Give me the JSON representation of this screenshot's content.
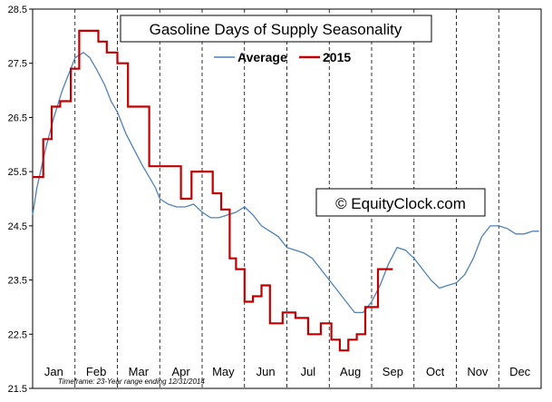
{
  "chart_data": {
    "type": "line",
    "title": "Gasoline Days of Supply Seasonality",
    "watermark": "© EquityClock.com",
    "footnote": "Timeframe: 23-Year range ending 12/31/2014",
    "xlabel": "",
    "ylabel": "",
    "x_range": [
      0,
      12
    ],
    "ylim": [
      21.5,
      28.5
    ],
    "y_ticks": [
      "28.5",
      "27.5",
      "26.5",
      "25.5",
      "24.5",
      "23.5",
      "22.5",
      "21.5"
    ],
    "x_categories": [
      "Jan",
      "Feb",
      "Mar",
      "Apr",
      "May",
      "Jun",
      "Jul",
      "Aug",
      "Sep",
      "Oct",
      "Nov",
      "Dec"
    ],
    "grid": "vertical dashed month separators",
    "legend_position": "top-center",
    "series": [
      {
        "name": "Average",
        "color": "#4f81bd",
        "style": "line",
        "x": [
          0.0,
          0.1,
          0.3,
          0.5,
          0.7,
          0.9,
          1.0,
          1.2,
          1.35,
          1.5,
          1.7,
          1.85,
          2.0,
          2.2,
          2.4,
          2.6,
          2.75,
          2.9,
          3.0,
          3.2,
          3.4,
          3.6,
          3.8,
          4.0,
          4.2,
          4.4,
          4.6,
          4.8,
          5.0,
          5.2,
          5.4,
          5.6,
          5.8,
          6.0,
          6.2,
          6.4,
          6.6,
          6.8,
          7.0,
          7.2,
          7.4,
          7.6,
          7.8,
          8.0,
          8.2,
          8.4,
          8.6,
          8.8,
          9.0,
          9.2,
          9.4,
          9.6,
          9.8,
          10.0,
          10.2,
          10.4,
          10.6,
          10.8,
          11.0,
          11.2,
          11.4,
          11.6,
          11.8,
          11.95
        ],
        "values": [
          24.7,
          25.2,
          25.9,
          26.5,
          27.0,
          27.4,
          27.6,
          27.7,
          27.6,
          27.4,
          27.1,
          26.8,
          26.6,
          26.2,
          25.9,
          25.6,
          25.4,
          25.2,
          25.0,
          24.9,
          24.85,
          24.85,
          24.9,
          24.75,
          24.65,
          24.65,
          24.7,
          24.75,
          24.85,
          24.7,
          24.5,
          24.4,
          24.3,
          24.1,
          24.05,
          24.0,
          23.9,
          23.7,
          23.5,
          23.3,
          23.1,
          22.9,
          22.9,
          23.1,
          23.4,
          23.8,
          24.1,
          24.05,
          23.9,
          23.7,
          23.5,
          23.35,
          23.4,
          23.45,
          23.6,
          23.9,
          24.3,
          24.5,
          24.5,
          24.45,
          24.35,
          24.35,
          24.4,
          24.4
        ]
      },
      {
        "name": "2015",
        "color": "#c00000",
        "style": "step",
        "x": [
          0.0,
          0.25,
          0.25,
          0.45,
          0.45,
          0.65,
          0.65,
          0.9,
          0.9,
          1.1,
          1.1,
          1.55,
          1.55,
          1.75,
          1.75,
          2.0,
          2.0,
          2.25,
          2.25,
          2.75,
          2.75,
          3.5,
          3.5,
          3.75,
          3.75,
          4.25,
          4.25,
          4.45,
          4.45,
          4.65,
          4.65,
          4.8,
          4.8,
          5.0,
          5.0,
          5.2,
          5.2,
          5.4,
          5.4,
          5.6,
          5.6,
          5.9,
          5.9,
          6.2,
          6.2,
          6.5,
          6.5,
          6.8,
          6.8,
          7.05,
          7.05,
          7.25,
          7.25,
          7.45,
          7.45,
          7.65,
          7.65,
          7.85,
          7.85,
          8.0,
          8.0,
          8.15,
          8.15,
          8.35,
          8.35,
          8.5
        ],
        "values": [
          25.4,
          25.4,
          26.1,
          26.1,
          26.7,
          26.7,
          26.8,
          26.8,
          27.4,
          27.4,
          28.1,
          28.1,
          27.9,
          27.9,
          27.7,
          27.7,
          27.5,
          27.5,
          26.7,
          26.7,
          25.6,
          25.6,
          25.0,
          25.0,
          25.5,
          25.5,
          25.1,
          25.1,
          24.8,
          24.8,
          23.9,
          23.9,
          23.7,
          23.7,
          23.1,
          23.1,
          23.2,
          23.2,
          23.4,
          23.4,
          22.7,
          22.7,
          22.9,
          22.9,
          22.8,
          22.8,
          22.5,
          22.5,
          22.7,
          22.7,
          22.4,
          22.4,
          22.2,
          22.2,
          22.4,
          22.4,
          22.5,
          22.5,
          23.0,
          23.0,
          23.0,
          23.0,
          23.7,
          23.7,
          23.7,
          23.7
        ]
      }
    ]
  }
}
